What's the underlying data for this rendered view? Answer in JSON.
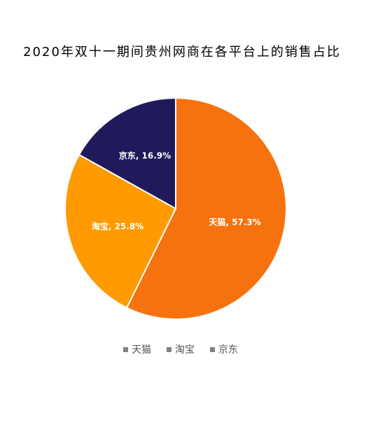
{
  "chart_data": {
    "type": "pie",
    "title": "2020年双十一期间贵州网商在各平台上的销售占比",
    "categories": [
      "天猫",
      "淘宝",
      "京东"
    ],
    "values": [
      57.3,
      25.8,
      16.9
    ],
    "value_labels": [
      "天猫, 57.3%",
      "淘宝, 25.8%",
      "京东, 16.9%"
    ],
    "colors": [
      "#f5720f",
      "#ff9a00",
      "#201a5c"
    ],
    "legend": "bottom",
    "legend_marker_color": "#808080"
  }
}
